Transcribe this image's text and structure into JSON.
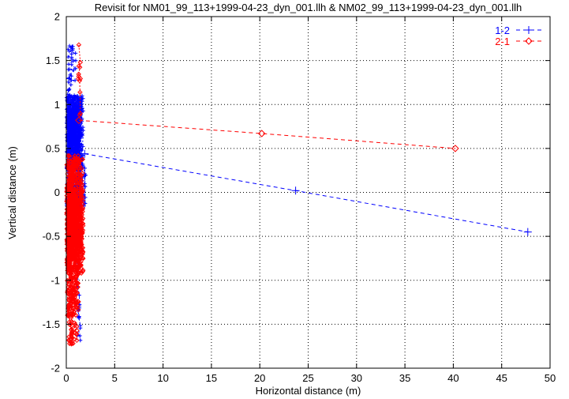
{
  "chart_data": {
    "type": "scatter",
    "title": "Revisit for NM01_99_113+1999-04-23_dyn_001.llh & NM02_99_113+1999-04-23_dyn_001.llh",
    "xlabel": "Horizontal distance (m)",
    "ylabel": "Vertical distance (m)",
    "xlim": [
      0,
      50
    ],
    "ylim": [
      -2,
      2
    ],
    "xticks": [
      0,
      5,
      10,
      15,
      20,
      25,
      30,
      35,
      40,
      45,
      50
    ],
    "yticks": [
      -2,
      -1.5,
      -1,
      -0.5,
      0,
      0.5,
      1,
      1.5,
      2
    ],
    "grid": "dotted",
    "grid_color": "#000000",
    "background": "#ffffff",
    "legend_position": "top-right-inside",
    "series": [
      {
        "name": "1-2",
        "color": "#0000ff",
        "marker": "plus",
        "linestyle": "dashed",
        "line_points": [
          [
            1.9,
            0.44
          ],
          [
            23.7,
            0.02
          ],
          [
            47.7,
            -0.45
          ]
        ],
        "cluster": {
          "seed": 7,
          "x_center": 0.9,
          "strata": [
            {
              "name": "upper-strand",
              "count": 40,
              "x": [
                0.15,
                1.0
              ],
              "y": [
                1.08,
                1.68
              ],
              "sort": "desc"
            },
            {
              "name": "core",
              "count": 420,
              "x": [
                0.05,
                1.75
              ],
              "y": [
                0.25,
                1.1
              ]
            },
            {
              "name": "mid",
              "count": 150,
              "x": [
                0.05,
                2.0
              ],
              "y": [
                -0.2,
                0.32
              ]
            },
            {
              "name": "tail-line",
              "count": 24,
              "x": [
                1.2,
                1.5
              ],
              "y": [
                -1.85,
                -0.05
              ],
              "sort": "desc"
            }
          ]
        }
      },
      {
        "name": "2-1",
        "color": "#ff0000",
        "marker": "diamond",
        "linestyle": "dashed",
        "line_points": [
          [
            1.3,
            0.82
          ],
          [
            20.2,
            0.67
          ],
          [
            40.2,
            0.5
          ]
        ],
        "cluster": {
          "seed": 42,
          "x_center": 0.8,
          "strata": [
            {
              "name": "top-strand",
              "count": 12,
              "x": [
                1.25,
                1.5
              ],
              "y": [
                0.85,
                1.79
              ],
              "sort": "desc"
            },
            {
              "name": "upper",
              "count": 110,
              "x": [
                0.05,
                1.7
              ],
              "y": [
                0.02,
                0.42
              ]
            },
            {
              "name": "core",
              "count": 430,
              "x": [
                0.05,
                1.75
              ],
              "y": [
                -0.92,
                0.05
              ]
            },
            {
              "name": "lower",
              "count": 90,
              "x": [
                0.1,
                1.3
              ],
              "y": [
                -1.42,
                -0.88
              ]
            },
            {
              "name": "bottom",
              "count": 30,
              "x": [
                0.25,
                1.15
              ],
              "y": [
                -1.75,
                -1.38
              ]
            }
          ]
        }
      }
    ]
  }
}
